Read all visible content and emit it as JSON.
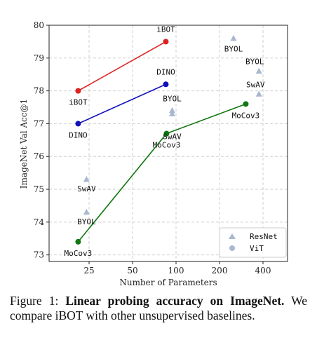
{
  "chart_data": {
    "type": "scatter",
    "xlabel": "Number of Parameters",
    "ylabel": "ImageNet Val Acc@1",
    "x_scale": "log",
    "xticks": [
      25,
      50,
      100,
      200,
      400
    ],
    "ylim": [
      72.8,
      80.0
    ],
    "yticks": [
      73,
      74,
      75,
      76,
      77,
      78,
      79,
      80
    ],
    "grid": true,
    "legend_position": "bottom-right",
    "legend": [
      {
        "label": "ResNet",
        "marker": "triangle",
        "color": "#a8b8d0"
      },
      {
        "label": "ViT",
        "marker": "circle",
        "color": "#a8b8d0"
      }
    ],
    "series": [
      {
        "name": "iBOT",
        "color": "#dd2222",
        "points": [
          {
            "x": 21,
            "y": 78.0,
            "label": "iBOT"
          },
          {
            "x": 85,
            "y": 79.5,
            "label": "iBOT"
          }
        ]
      },
      {
        "name": "DINO",
        "color": "#1111bb",
        "points": [
          {
            "x": 21,
            "y": 77.0,
            "label": "DINO"
          },
          {
            "x": 85,
            "y": 78.2,
            "label": "DINO"
          }
        ]
      },
      {
        "name": "MoCov3",
        "color": "#117711",
        "points": [
          {
            "x": 21,
            "y": 73.4,
            "label": "MoCov3"
          },
          {
            "x": 86,
            "y": 76.7,
            "label": "MoCov3"
          },
          {
            "x": 304,
            "y": 77.6,
            "label": "MoCov3"
          }
        ]
      }
    ],
    "resnet_points": [
      {
        "x": 24,
        "y": 75.3,
        "label": "SwAV"
      },
      {
        "x": 24,
        "y": 74.3,
        "label": "BYOL"
      },
      {
        "x": 94,
        "y": 77.3,
        "label": "SwAV"
      },
      {
        "x": 94,
        "y": 77.4,
        "label": "BYOL"
      },
      {
        "x": 250,
        "y": 79.6,
        "label": "BYOL"
      },
      {
        "x": 375,
        "y": 77.9,
        "label": "SwAV"
      },
      {
        "x": 375,
        "y": 78.6,
        "label": "BYOL"
      }
    ]
  },
  "caption": {
    "prefix": "Figure 1: ",
    "bold": "Linear probing accuracy on ImageNet.",
    "rest": " We compare iBOT with other unsupervised baselines."
  }
}
